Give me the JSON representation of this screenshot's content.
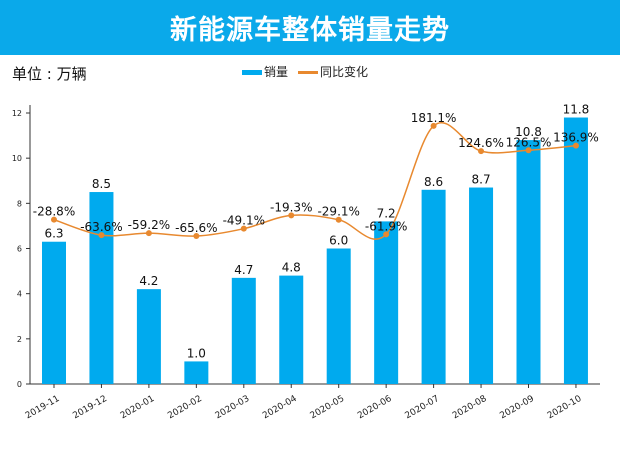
{
  "header": {
    "title": "新能源车整体销量走势"
  },
  "unit_label": "单位 : 万辆",
  "chart_data": {
    "type": "bar+line",
    "title": "新能源车整体销量走势",
    "categories": [
      "2019-11",
      "2019-12",
      "2020-01",
      "2020-02",
      "2020-03",
      "2020-04",
      "2020-05",
      "2020-06",
      "2020-07",
      "2020-08",
      "2020-09",
      "2020-10"
    ],
    "series": [
      {
        "name": "销量",
        "type": "bar",
        "axis": "left",
        "color": "#00aaee",
        "values": [
          6.3,
          8.5,
          4.2,
          1.0,
          4.7,
          4.8,
          6.0,
          7.2,
          8.6,
          8.7,
          10.8,
          11.8
        ],
        "labels": [
          "6.3",
          "8.5",
          "4.2",
          "1.0",
          "4.7",
          "4.8",
          "6.0",
          "7.2",
          "8.6",
          "8.7",
          "10.8",
          "11.8"
        ]
      },
      {
        "name": "同比变化",
        "type": "line",
        "smooth": true,
        "axis": "right-hidden",
        "color": "#e8892f",
        "values": [
          -28.8,
          -63.6,
          -59.2,
          -65.6,
          -49.1,
          -19.3,
          -29.1,
          -61.9,
          181.1,
          124.6,
          126.5,
          136.9
        ],
        "labels": [
          "-28.8%",
          "-63.6%",
          "-59.2%",
          "-65.6%",
          "-49.1%",
          "-19.3%",
          "-29.1%",
          "-61.9%",
          "181.1%",
          "124.6%",
          "126.5%",
          "136.9%"
        ]
      }
    ],
    "ylim": [
      0,
      12
    ],
    "yticks": [
      "0",
      "2",
      "4",
      "6",
      "8",
      "10",
      "12"
    ],
    "y2lim": [
      -397,
      210
    ],
    "grid": false,
    "legend": "top-center"
  }
}
